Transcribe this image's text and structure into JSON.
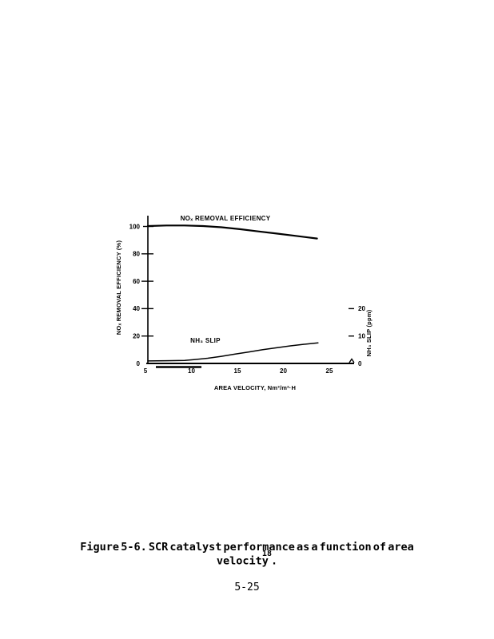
{
  "page": {
    "caption_line1": "Figure 5-6.  SCR catalyst performance as a function of area",
    "caption_word": "velocity",
    "caption_ref": "18",
    "caption_period": ".",
    "page_number": "5-25"
  },
  "chart_data": {
    "type": "line",
    "xlabel": "AREA VELOCITY, Nm³/m²·H",
    "ylabel_left": "NOₓ REMOVAL EFFICIENCY (%)",
    "ylabel_right": "NH₃ SLIP (ppm)",
    "x_ticks": [
      "5",
      "10",
      "15",
      "20",
      "25"
    ],
    "x_tick_values": [
      5,
      10,
      15,
      20,
      25
    ],
    "left_ticks": [
      "0",
      "20",
      "40",
      "60",
      "80",
      "100"
    ],
    "left_tick_values": [
      0,
      20,
      40,
      60,
      80,
      100
    ],
    "right_ticks": [
      "0",
      "10",
      "20"
    ],
    "right_tick_values": [
      0,
      10,
      20
    ],
    "xlim": [
      5,
      27.6
    ],
    "ylim_left": [
      0,
      108
    ],
    "ylim_right": [
      0,
      54
    ],
    "grid": false,
    "line_color": "#000000",
    "series": [
      {
        "name": "NOx removal efficiency",
        "label": "NOₓ REMOVAL EFFICIENCY",
        "axis": "left",
        "x": [
          5,
          7,
          9,
          11,
          13,
          15,
          17,
          19,
          21,
          23.4
        ],
        "y": [
          100.3,
          100.7,
          100.7,
          100.3,
          99.4,
          98.0,
          96.4,
          94.8,
          93.2,
          91.2
        ]
      },
      {
        "name": "NH3 slip",
        "label": "NH₃ SLIP",
        "axis": "right",
        "x": [
          5,
          7,
          9,
          10,
          11.5,
          13,
          14.5,
          16,
          17.5,
          19,
          20.5,
          22,
          23.5
        ],
        "y": [
          0.9,
          1.0,
          1.1,
          1.4,
          1.9,
          2.6,
          3.4,
          4.2,
          5.0,
          5.7,
          6.4,
          7.0,
          7.5
        ]
      }
    ]
  }
}
